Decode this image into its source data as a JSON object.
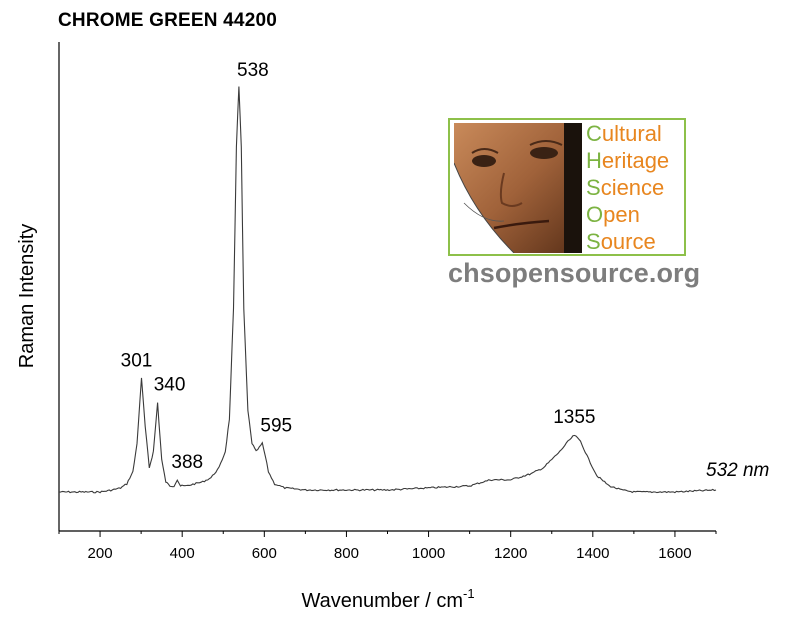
{
  "chart_data": {
    "type": "line",
    "title": "CHROME GREEN 44200",
    "xlabel": "Wavenumber / cm",
    "xlabel_sup": "-1",
    "ylabel": "Raman Intensity",
    "xlim": [
      100,
      1700
    ],
    "xticks": [
      200,
      400,
      600,
      800,
      1000,
      1200,
      1400,
      1600
    ],
    "ylim": [
      0,
      100
    ],
    "yticks_shown": false,
    "grid": false,
    "annotation": "532 nm",
    "peaks": [
      {
        "label": "301",
        "x": 301,
        "y": 28
      },
      {
        "label": "340",
        "x": 340,
        "y": 22
      },
      {
        "label": "388",
        "x": 388,
        "y": 3
      },
      {
        "label": "538",
        "x": 538,
        "y": 100
      },
      {
        "label": "595",
        "x": 595,
        "y": 12
      },
      {
        "label": "1355",
        "x": 1355,
        "y": 14
      }
    ],
    "series": [
      {
        "color": "#404040",
        "x": [
          100,
          150,
          200,
          230,
          250,
          265,
          280,
          290,
          301,
          310,
          320,
          330,
          340,
          350,
          360,
          370,
          380,
          388,
          396,
          410,
          430,
          450,
          470,
          490,
          505,
          515,
          525,
          532,
          538,
          544,
          550,
          560,
          570,
          580,
          588,
          595,
          602,
          610,
          625,
          650,
          700,
          800,
          900,
          1000,
          1100,
          1150,
          1200,
          1250,
          1280,
          1300,
          1320,
          1340,
          1355,
          1370,
          1390,
          1410,
          1440,
          1470,
          1500,
          1600,
          1700
        ],
        "y": [
          0,
          0,
          0,
          0.5,
          1,
          2,
          5,
          12,
          28,
          16,
          6,
          10,
          22,
          8,
          2.5,
          1.5,
          1.5,
          3,
          1.5,
          1.5,
          2,
          2.5,
          3.5,
          6,
          10,
          18,
          45,
          85,
          100,
          85,
          45,
          20,
          12,
          10,
          11,
          12,
          9,
          5,
          2,
          1,
          0.5,
          0.5,
          0.5,
          1,
          1.5,
          3,
          3,
          4.5,
          6,
          8,
          10,
          12.5,
          14,
          12.5,
          8,
          4,
          1.5,
          0.5,
          0,
          0,
          0.5
        ]
      }
    ]
  },
  "logo": {
    "lines": [
      "Cultural",
      "Heritage",
      "Science",
      "Open",
      "Source"
    ],
    "url": "chsopensource.org"
  }
}
